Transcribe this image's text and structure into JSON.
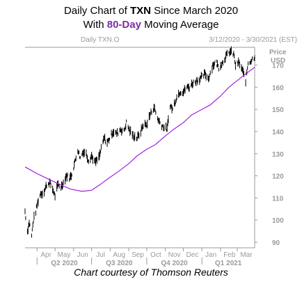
{
  "title": {
    "line1_prefix": "Daily Chart of ",
    "line1_ticker": "TXN",
    "line1_suffix": " Since March 2020",
    "line2_prefix": "With ",
    "line2_highlight": "80-Day",
    "line2_suffix": " Moving Average"
  },
  "credit": "Chart courtesy of Thomson Reuters",
  "colors": {
    "price": "#000000",
    "moving_average": "#a020e0",
    "highlight": "#7a2fa0",
    "axis_text": "#9a9a9a",
    "grid": "#d8d8d8"
  },
  "chart_data": {
    "type": "line",
    "header_left": "Daily TXN.O",
    "header_right": "3/12/2020 - 3/30/2021 (EST)",
    "ylabel": "Price USD",
    "y_ticks": [
      90,
      100,
      110,
      120,
      130,
      140,
      150,
      160,
      170
    ],
    "ylim": [
      87.5,
      178
    ],
    "month_labels": [
      "Apr",
      "May",
      "Jun",
      "Jul",
      "Aug",
      "Sep",
      "Oct",
      "Nov",
      "Dec",
      "Jan",
      "Feb",
      "Mar"
    ],
    "quarter_labels": [
      "Q2 2020",
      "Q3 2020",
      "Q4 2020",
      "Q1 2021"
    ],
    "grid": false,
    "series": [
      {
        "name": "Daily TXN.O",
        "x": [
          "2020-03-12",
          "2020-03-16",
          "2020-03-19",
          "2020-03-23",
          "2020-03-26",
          "2020-03-30",
          "2020-04-02",
          "2020-04-07",
          "2020-04-13",
          "2020-04-17",
          "2020-04-22",
          "2020-04-27",
          "2020-05-01",
          "2020-05-06",
          "2020-05-11",
          "2020-05-15",
          "2020-05-20",
          "2020-05-26",
          "2020-05-29",
          "2020-06-03",
          "2020-06-08",
          "2020-06-12",
          "2020-06-17",
          "2020-06-22",
          "2020-06-26",
          "2020-07-01",
          "2020-07-07",
          "2020-07-13",
          "2020-07-17",
          "2020-07-22",
          "2020-07-27",
          "2020-07-31",
          "2020-08-06",
          "2020-08-12",
          "2020-08-18",
          "2020-08-24",
          "2020-08-28",
          "2020-09-03",
          "2020-09-09",
          "2020-09-15",
          "2020-09-21",
          "2020-09-25",
          "2020-10-01",
          "2020-10-07",
          "2020-10-13",
          "2020-10-19",
          "2020-10-23",
          "2020-10-29",
          "2020-11-04",
          "2020-11-09",
          "2020-11-13",
          "2020-11-19",
          "2020-11-25",
          "2020-12-01",
          "2020-12-07",
          "2020-12-11",
          "2020-12-17",
          "2020-12-23",
          "2020-12-30",
          "2021-01-06",
          "2021-01-12",
          "2021-01-19",
          "2021-01-25",
          "2021-01-29",
          "2021-02-04",
          "2021-02-10",
          "2021-02-17",
          "2021-02-23",
          "2021-02-26",
          "2021-03-04",
          "2021-03-09",
          "2021-03-15",
          "2021-03-19",
          "2021-03-24",
          "2021-03-30"
        ],
        "y": [
          104,
          95,
          99,
          93,
          100,
          104,
          108,
          112,
          113,
          116,
          117,
          114,
          111,
          116,
          115,
          117,
          120,
          119,
          121,
          126,
          132,
          128,
          131,
          130,
          127,
          129,
          126,
          128,
          132,
          137,
          135,
          137,
          140,
          139,
          141,
          140,
          144,
          140,
          138,
          137,
          140,
          143,
          143,
          148,
          151,
          146,
          144,
          142,
          141,
          152,
          150,
          155,
          158,
          158,
          160,
          160,
          162,
          163,
          164,
          166,
          164,
          170,
          171,
          169,
          171,
          174,
          176,
          175,
          170,
          171,
          168,
          163,
          171,
          172,
          174
        ]
      },
      {
        "name": "80-Day Moving Average",
        "x": [
          "2020-03-12",
          "2020-04-01",
          "2020-04-20",
          "2020-05-10",
          "2020-05-27",
          "2020-06-15",
          "2020-07-01",
          "2020-07-15",
          "2020-07-30",
          "2020-08-15",
          "2020-09-01",
          "2020-09-15",
          "2020-10-01",
          "2020-10-15",
          "2020-11-01",
          "2020-11-15",
          "2020-12-01",
          "2020-12-15",
          "2021-01-01",
          "2021-01-15",
          "2021-02-01",
          "2021-02-15",
          "2021-03-01",
          "2021-03-15",
          "2021-03-30"
        ],
        "y": [
          124,
          121,
          118.5,
          116,
          114,
          113,
          113.5,
          116,
          119,
          122,
          125.5,
          129,
          132,
          134,
          138,
          141,
          144,
          147.5,
          150,
          152,
          156,
          160,
          163,
          166,
          169
        ]
      }
    ]
  }
}
